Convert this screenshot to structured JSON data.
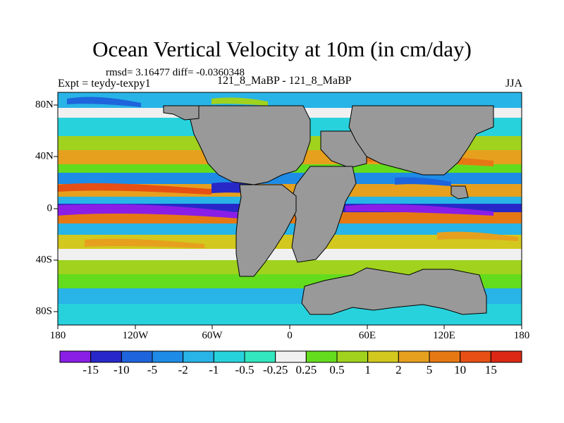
{
  "title": "Ocean Vertical Velocity at 10m (in cm/day)",
  "stats_line": "rmsd= 3.16477 diff= -0.0360348",
  "expt_label": "Expt = teydy-texpy1",
  "experiment_names": "121_8_MaBP - 121_8_MaBP",
  "season": "JJA",
  "x_ticks": [
    "180",
    "120W",
    "60W",
    "0",
    "60E",
    "120E",
    "180"
  ],
  "y_ticks": [
    "80N",
    "40N",
    "0",
    "40S",
    "80S"
  ],
  "colorbar": {
    "labels": [
      "-15",
      "-10",
      "-5",
      "-2",
      "-1",
      "-0.5",
      "-0.25",
      "0.25",
      "0.5",
      "1",
      "2",
      "5",
      "10",
      "15"
    ],
    "colors": [
      "#8a1ee6",
      "#2828c8",
      "#1e64dc",
      "#1e8ce6",
      "#28b4e6",
      "#28d2dc",
      "#32e6be",
      "#f0f0f0",
      "#64dc1e",
      "#a0d21e",
      "#d2c81e",
      "#e6a01e",
      "#e67814",
      "#e65014",
      "#dc2814"
    ]
  },
  "colors": {
    "land": "#999999",
    "ocean_base": "#a6d22a"
  }
}
